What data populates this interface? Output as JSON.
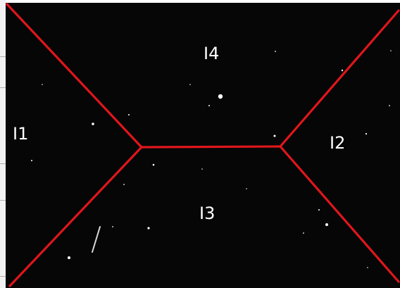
{
  "regions": [
    {
      "id": "i1",
      "label": "I1"
    },
    {
      "id": "i2",
      "label": "I2"
    },
    {
      "id": "i3",
      "label": "I3"
    },
    {
      "id": "i4",
      "label": "I4"
    }
  ],
  "colors": {
    "background": "#060606",
    "boundary_lines": "#e0161c",
    "labels": "#ffffff"
  }
}
